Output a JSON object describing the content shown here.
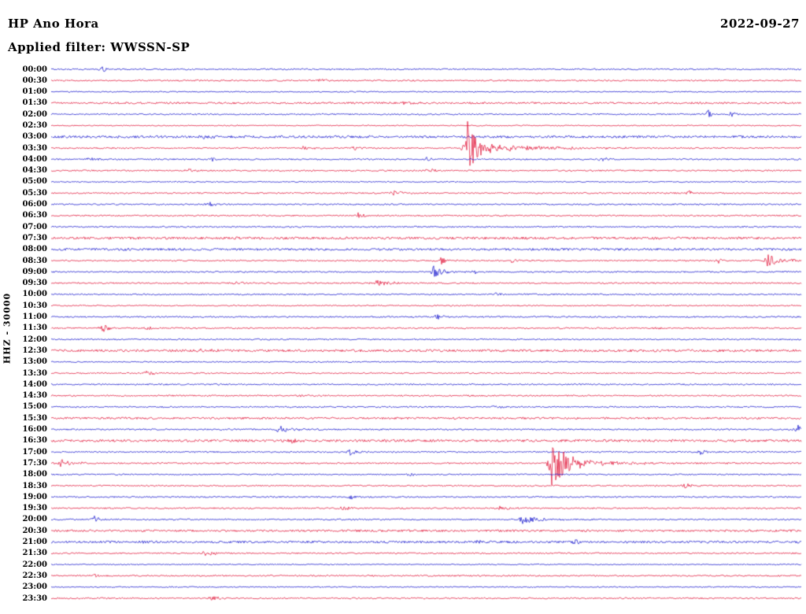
{
  "header": {
    "station": "HP Ano Hora",
    "date": "2022-09-27",
    "filter_label": "Applied filter: WWSSN-SP"
  },
  "axis": {
    "left_label": "HHZ - 30000"
  },
  "chart_data": {
    "type": "line",
    "title": "HP Ano Hora helicorder (drum) plot",
    "date": "2022-09-27",
    "filter": "WWSSN-SP",
    "channel": "HHZ",
    "scale": 30000,
    "row_interval_minutes": 30,
    "legend_position": "none",
    "grid": false,
    "trace_colors": {
      "even_rows": "#1414cc",
      "odd_rows": "#e01337"
    },
    "rows": [
      "00:00",
      "00:30",
      "01:00",
      "01:30",
      "02:00",
      "02:30",
      "03:00",
      "03:30",
      "04:00",
      "04:30",
      "05:00",
      "05:30",
      "06:00",
      "06:30",
      "07:00",
      "07:30",
      "08:00",
      "08:30",
      "09:00",
      "09:30",
      "10:00",
      "10:30",
      "11:00",
      "11:30",
      "12:00",
      "12:30",
      "13:00",
      "13:30",
      "14:00",
      "14:30",
      "15:00",
      "15:30",
      "16:00",
      "16:30",
      "17:00",
      "17:30",
      "18:00",
      "18:30",
      "19:00",
      "19:30",
      "20:00",
      "20:30",
      "21:00",
      "21:30",
      "22:00",
      "22:30",
      "23:00",
      "23:30"
    ],
    "noise_amp_default": 0.9,
    "row_noise_overrides": {
      "2": 0.7,
      "3": 1.2,
      "5": 0.7,
      "6": 1.5,
      "10": 0.7,
      "15": 1.5,
      "16": 1.4,
      "21": 0.8,
      "25": 1.5,
      "26": 0.8,
      "31": 1.3,
      "33": 1.5,
      "36": 0.8,
      "41": 1.3,
      "42": 1.4,
      "44": 0.7,
      "46": 0.7
    },
    "events": [
      {
        "row": 0,
        "x": 0.068,
        "amp": 5,
        "w": 0.004
      },
      {
        "row": 1,
        "x": 0.357,
        "amp": 2.5,
        "w": 0.01
      },
      {
        "row": 1,
        "x": 0.477,
        "amp": 2,
        "w": 0.006
      },
      {
        "row": 3,
        "x": 0.47,
        "amp": 1.5,
        "w": 0.03
      },
      {
        "row": 4,
        "x": 0.876,
        "amp": 6,
        "w": 0.004
      },
      {
        "row": 4,
        "x": 0.908,
        "amp": 6,
        "w": 0.005
      },
      {
        "row": 6,
        "x": 0.2,
        "amp": 2,
        "w": 0.02
      },
      {
        "row": 7,
        "x": 0.335,
        "amp": 2.5,
        "w": 0.015
      },
      {
        "row": 7,
        "x": 0.402,
        "amp": 3,
        "w": 0.012
      },
      {
        "row": 7,
        "x": 0.556,
        "amp": 45,
        "w": 0.011
      },
      {
        "row": 7,
        "x": 0.58,
        "amp": 5,
        "w": 0.08
      },
      {
        "row": 8,
        "x": 0.048,
        "amp": 3,
        "w": 0.01
      },
      {
        "row": 8,
        "x": 0.215,
        "amp": 3,
        "w": 0.005
      },
      {
        "row": 8,
        "x": 0.41,
        "amp": 2.5,
        "w": 0.008
      },
      {
        "row": 8,
        "x": 0.5,
        "amp": 2.5,
        "w": 0.01
      },
      {
        "row": 8,
        "x": 0.734,
        "amp": 3,
        "w": 0.008
      },
      {
        "row": 9,
        "x": 0.184,
        "amp": 2.5,
        "w": 0.008
      },
      {
        "row": 9,
        "x": 0.504,
        "amp": 4,
        "w": 0.01
      },
      {
        "row": 11,
        "x": 0.456,
        "amp": 4,
        "w": 0.012
      },
      {
        "row": 11,
        "x": 0.85,
        "amp": 5,
        "w": 0.006
      },
      {
        "row": 12,
        "x": 0.21,
        "amp": 3,
        "w": 0.008
      },
      {
        "row": 13,
        "x": 0.409,
        "amp": 3.5,
        "w": 0.01
      },
      {
        "row": 16,
        "x": 0.1,
        "amp": 3,
        "w": 0.006
      },
      {
        "row": 17,
        "x": 0.52,
        "amp": 5,
        "w": 0.008
      },
      {
        "row": 17,
        "x": 0.614,
        "amp": 4,
        "w": 0.01
      },
      {
        "row": 17,
        "x": 0.89,
        "amp": 3.5,
        "w": 0.006
      },
      {
        "row": 17,
        "x": 0.955,
        "amp": 9,
        "w": 0.018
      },
      {
        "row": 18,
        "x": 0.51,
        "amp": 7,
        "w": 0.012
      },
      {
        "row": 18,
        "x": 0.567,
        "amp": 4,
        "w": 0.006
      },
      {
        "row": 19,
        "x": 0.247,
        "amp": 3,
        "w": 0.008
      },
      {
        "row": 19,
        "x": 0.43,
        "amp": 5,
        "w": 0.02
      },
      {
        "row": 20,
        "x": 0.593,
        "amp": 3,
        "w": 0.008
      },
      {
        "row": 22,
        "x": 0.514,
        "amp": 4,
        "w": 0.008
      },
      {
        "row": 23,
        "x": 0.068,
        "amp": 5,
        "w": 0.012
      },
      {
        "row": 23,
        "x": 0.126,
        "amp": 3,
        "w": 0.008
      },
      {
        "row": 23,
        "x": 0.803,
        "amp": 2,
        "w": 0.008
      },
      {
        "row": 25,
        "x": 0.2,
        "amp": 2.5,
        "w": 0.01
      },
      {
        "row": 27,
        "x": 0.126,
        "amp": 4,
        "w": 0.01
      },
      {
        "row": 29,
        "x": 0.33,
        "amp": 2,
        "w": 0.01
      },
      {
        "row": 30,
        "x": 0.593,
        "amp": 3,
        "w": 0.008
      },
      {
        "row": 32,
        "x": 0.304,
        "amp": 5,
        "w": 0.015
      },
      {
        "row": 32,
        "x": 0.995,
        "amp": 6,
        "w": 0.004
      },
      {
        "row": 33,
        "x": 0.32,
        "amp": 4,
        "w": 0.01
      },
      {
        "row": 34,
        "x": 0.399,
        "amp": 4,
        "w": 0.01
      },
      {
        "row": 34,
        "x": 0.866,
        "amp": 5,
        "w": 0.006
      },
      {
        "row": 35,
        "x": 0.012,
        "amp": 6,
        "w": 0.015
      },
      {
        "row": 35,
        "x": 0.669,
        "amp": 48,
        "w": 0.012
      },
      {
        "row": 35,
        "x": 0.69,
        "amp": 5,
        "w": 0.07
      },
      {
        "row": 36,
        "x": 0.477,
        "amp": 2.5,
        "w": 0.008
      },
      {
        "row": 37,
        "x": 0.845,
        "amp": 4,
        "w": 0.008
      },
      {
        "row": 38,
        "x": 0.399,
        "amp": 3,
        "w": 0.006
      },
      {
        "row": 39,
        "x": 0.388,
        "amp": 4,
        "w": 0.008
      },
      {
        "row": 39,
        "x": 0.598,
        "amp": 4,
        "w": 0.01
      },
      {
        "row": 40,
        "x": 0.058,
        "amp": 5,
        "w": 0.006
      },
      {
        "row": 40,
        "x": 0.628,
        "amp": 6,
        "w": 0.02
      },
      {
        "row": 42,
        "x": 0.126,
        "amp": 3,
        "w": 0.006
      },
      {
        "row": 42,
        "x": 0.567,
        "amp": 4,
        "w": 0.01
      },
      {
        "row": 42,
        "x": 0.698,
        "amp": 3,
        "w": 0.008
      },
      {
        "row": 43,
        "x": 0.205,
        "amp": 4,
        "w": 0.015
      },
      {
        "row": 45,
        "x": 0.058,
        "amp": 2.5,
        "w": 0.006
      },
      {
        "row": 47,
        "x": 0.215,
        "amp": 4,
        "w": 0.012
      }
    ]
  }
}
